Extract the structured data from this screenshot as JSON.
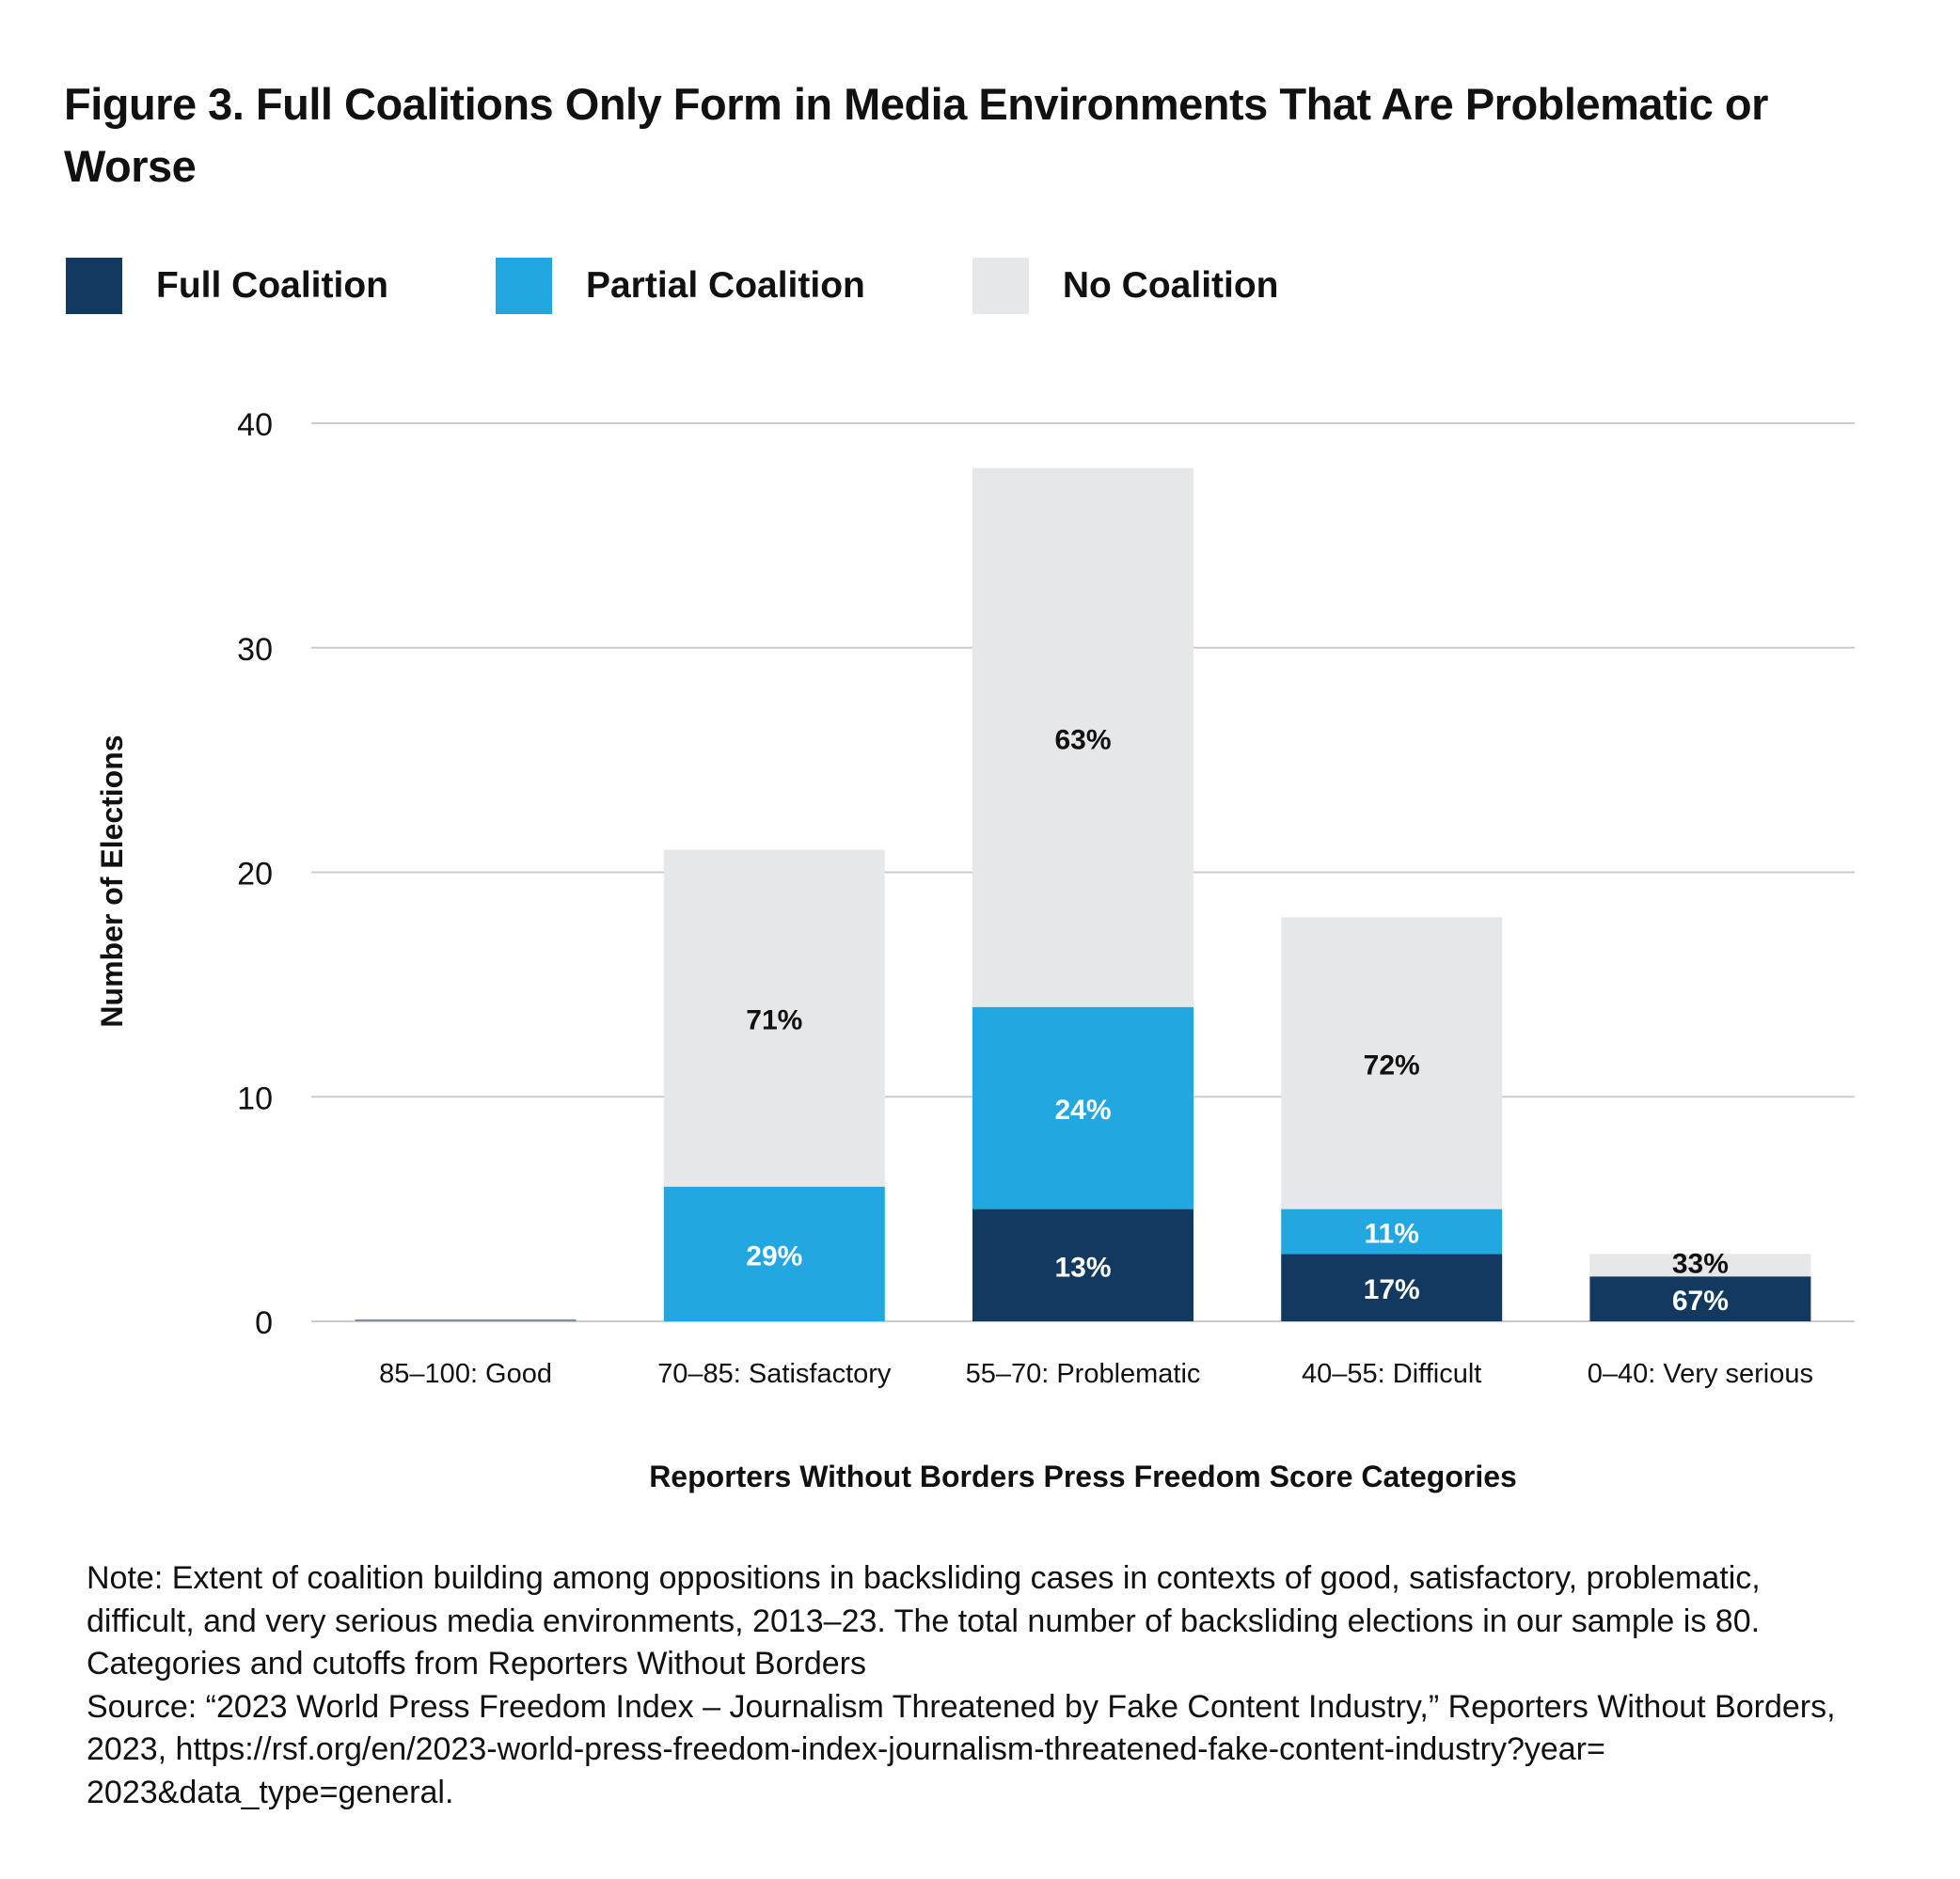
{
  "title": "Figure 3. Full Coalitions Only Form in Media Environments That Are Problematic or Worse",
  "legend": [
    {
      "label": "Full Coalition",
      "color": "#123a60"
    },
    {
      "label": "Partial Coalition",
      "color": "#22a7e0"
    },
    {
      "label": "No Coalition",
      "color": "#e6e7e9"
    }
  ],
  "chart_data": {
    "type": "bar",
    "stacked": true,
    "categories": [
      "85–100: Good",
      "70–85: Satisfactory",
      "55–70: Problematic",
      "40–55: Difficult",
      "0–40: Very serious"
    ],
    "series": [
      {
        "name": "Full Coalition",
        "color": "#123a60",
        "values": [
          0,
          0,
          5,
          3,
          2
        ],
        "labels": [
          "",
          "",
          "13%",
          "17%",
          "67%"
        ]
      },
      {
        "name": "Partial Coalition",
        "color": "#22a7e0",
        "values": [
          0,
          6,
          9,
          2,
          0
        ],
        "labels": [
          "",
          "29%",
          "24%",
          "11%",
          ""
        ]
      },
      {
        "name": "No Coalition",
        "color": "#e6e7e9",
        "values": [
          0,
          15,
          24,
          13,
          1
        ],
        "labels": [
          "",
          "71%",
          "63%",
          "72%",
          "33%"
        ]
      }
    ],
    "xlabel": "Reporters Without Borders Press Freedom Score Categories",
    "ylabel": "Number of Elections",
    "ylim": [
      0,
      40
    ],
    "yticks": [
      "0",
      "10",
      "20",
      "30",
      "40"
    ],
    "grid": true,
    "legend_position": "top-left"
  },
  "note": [
    "Note:  Extent of coalition building among oppositions in backsliding cases in contexts of good, satisfactory, problematic,",
    "difficult, and very serious media environments, 2013–23. The total number of backsliding elections in our sample is 80.",
    "Categories and cutoffs from Reporters Without Borders",
    "Source: “2023 World Press Freedom Index – Journalism Threatened by Fake Content Industry,” Reporters Without Borders,",
    "2023, https://rsf.org/en/2023-world-press-freedom-index-journalism-threatened-fake-content-industry?year=",
    "2023&data_type=general."
  ]
}
